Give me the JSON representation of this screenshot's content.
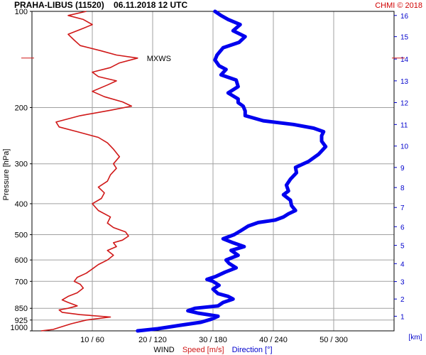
{
  "header": {
    "title": "PRAHA-LIBUS (11520)    06.11.2018 12 UTC",
    "copyright": "CHMI © 2018"
  },
  "colors": {
    "speed": "#d01818",
    "direction": "#0000ee",
    "grid": "#a0a0a0",
    "height_axis": "#0000cc"
  },
  "chart_data": {
    "type": "line",
    "xlabel_prefix": "WIND",
    "xlabel_speed": "Speed [m/s]",
    "xlabel_direction": "Direction [°]",
    "ylabel": "Pressure [hPa]",
    "y_scale": "log",
    "y_range_hpa": [
      1000,
      100
    ],
    "x_range_speed_ms": [
      0,
      60
    ],
    "x_range_direction_deg": [
      0,
      360
    ],
    "x_ticks": [
      "10 / 60",
      "20 / 120",
      "30 / 180",
      "40 / 240",
      "50 / 300"
    ],
    "x_tick_speed_values": [
      10,
      20,
      30,
      40,
      50
    ],
    "pressure_ticks": [
      1000,
      925,
      850,
      700,
      600,
      500,
      400,
      300,
      200,
      100
    ],
    "height_axis_label": "[km]",
    "height_ticks": [
      {
        "km": "1",
        "hpa": 900
      },
      {
        "km": "2",
        "hpa": 795
      },
      {
        "km": "3",
        "hpa": 701
      },
      {
        "km": "4",
        "hpa": 616
      },
      {
        "km": "5",
        "hpa": 540
      },
      {
        "km": "6",
        "hpa": 472
      },
      {
        "km": "7",
        "hpa": 411
      },
      {
        "km": "8",
        "hpa": 356
      },
      {
        "km": "9",
        "hpa": 308
      },
      {
        "km": "10",
        "hpa": 264
      },
      {
        "km": "11",
        "hpa": 226
      },
      {
        "km": "12",
        "hpa": 193
      },
      {
        "km": "13",
        "hpa": 165
      },
      {
        "km": "14",
        "hpa": 141
      },
      {
        "km": "15",
        "hpa": 120
      },
      {
        "km": "16",
        "hpa": 103
      }
    ],
    "max_wind": {
      "label": "MXWS",
      "hpa": 140,
      "speed_ms": 17.5
    },
    "series": [
      {
        "name": "Speed [m/s]",
        "unit": "m/s",
        "points": [
          [
            1000,
            1.5
          ],
          [
            990,
            3.5
          ],
          [
            970,
            5
          ],
          [
            950,
            6.5
          ],
          [
            925,
            9
          ],
          [
            905,
            13
          ],
          [
            890,
            8
          ],
          [
            875,
            5
          ],
          [
            860,
            4.5
          ],
          [
            850,
            6
          ],
          [
            835,
            7.5
          ],
          [
            815,
            6
          ],
          [
            800,
            5
          ],
          [
            780,
            6
          ],
          [
            760,
            7.5
          ],
          [
            735,
            8.5
          ],
          [
            715,
            8
          ],
          [
            700,
            7
          ],
          [
            680,
            7.5
          ],
          [
            660,
            9
          ],
          [
            640,
            10
          ],
          [
            620,
            11
          ],
          [
            600,
            12.5
          ],
          [
            580,
            13.5
          ],
          [
            560,
            12.5
          ],
          [
            545,
            14
          ],
          [
            530,
            13.5
          ],
          [
            520,
            15
          ],
          [
            505,
            16
          ],
          [
            490,
            15.5
          ],
          [
            475,
            13.5
          ],
          [
            460,
            12.5
          ],
          [
            440,
            13
          ],
          [
            420,
            11
          ],
          [
            400,
            10
          ],
          [
            385,
            11.5
          ],
          [
            370,
            12
          ],
          [
            355,
            11
          ],
          [
            340,
            12.5
          ],
          [
            325,
            13
          ],
          [
            310,
            14
          ],
          [
            300,
            13.5
          ],
          [
            285,
            14.5
          ],
          [
            270,
            13.5
          ],
          [
            258,
            12.5
          ],
          [
            248,
            11
          ],
          [
            238,
            7.5
          ],
          [
            230,
            4.5
          ],
          [
            222,
            4
          ],
          [
            212,
            8
          ],
          [
            204,
            13
          ],
          [
            198,
            16.5
          ],
          [
            192,
            15
          ],
          [
            185,
            12
          ],
          [
            178,
            10
          ],
          [
            170,
            12.5
          ],
          [
            165,
            14
          ],
          [
            160,
            11
          ],
          [
            155,
            10
          ],
          [
            150,
            13
          ],
          [
            145,
            14.5
          ],
          [
            140,
            17.5
          ],
          [
            137,
            14
          ],
          [
            133,
            11.5
          ],
          [
            128,
            8
          ],
          [
            123,
            7
          ],
          [
            118,
            6
          ],
          [
            113,
            8.5
          ],
          [
            110,
            10
          ],
          [
            106,
            8.5
          ],
          [
            103,
            6
          ],
          [
            100,
            9
          ]
        ]
      },
      {
        "name": "Direction [°]",
        "unit": "deg",
        "points": [
          [
            1000,
            105
          ],
          [
            985,
            125
          ],
          [
            960,
            148
          ],
          [
            940,
            168
          ],
          [
            920,
            178
          ],
          [
            900,
            185
          ],
          [
            880,
            165
          ],
          [
            865,
            155
          ],
          [
            850,
            162
          ],
          [
            835,
            185
          ],
          [
            815,
            190
          ],
          [
            795,
            200
          ],
          [
            780,
            195
          ],
          [
            765,
            185
          ],
          [
            740,
            180
          ],
          [
            720,
            186
          ],
          [
            700,
            180
          ],
          [
            690,
            174
          ],
          [
            675,
            183
          ],
          [
            655,
            192
          ],
          [
            635,
            203
          ],
          [
            615,
            196
          ],
          [
            600,
            193
          ],
          [
            580,
            205
          ],
          [
            560,
            198
          ],
          [
            545,
            211
          ],
          [
            530,
            200
          ],
          [
            515,
            190
          ],
          [
            500,
            201
          ],
          [
            485,
            208
          ],
          [
            470,
            215
          ],
          [
            458,
            225
          ],
          [
            450,
            242
          ],
          [
            440,
            250
          ],
          [
            430,
            255
          ],
          [
            420,
            262
          ],
          [
            405,
            258
          ],
          [
            390,
            257
          ],
          [
            375,
            250
          ],
          [
            365,
            255
          ],
          [
            350,
            253
          ],
          [
            335,
            257
          ],
          [
            320,
            263
          ],
          [
            308,
            262
          ],
          [
            295,
            275
          ],
          [
            280,
            285
          ],
          [
            265,
            292
          ],
          [
            255,
            288
          ],
          [
            245,
            288
          ],
          [
            238,
            290
          ],
          [
            232,
            280
          ],
          [
            226,
            260
          ],
          [
            220,
            230
          ],
          [
            212,
            212
          ],
          [
            205,
            212
          ],
          [
            198,
            210
          ],
          [
            193,
            205
          ],
          [
            188,
            205
          ],
          [
            180,
            195
          ],
          [
            172,
            205
          ],
          [
            164,
            203
          ],
          [
            158,
            188
          ],
          [
            152,
            193
          ],
          [
            148,
            186
          ],
          [
            142,
            182
          ],
          [
            137,
            184
          ],
          [
            130,
            190
          ],
          [
            125,
            206
          ],
          [
            120,
            212
          ],
          [
            115,
            200
          ],
          [
            110,
            207
          ],
          [
            106,
            195
          ],
          [
            103,
            188
          ],
          [
            100,
            182
          ]
        ]
      }
    ]
  }
}
